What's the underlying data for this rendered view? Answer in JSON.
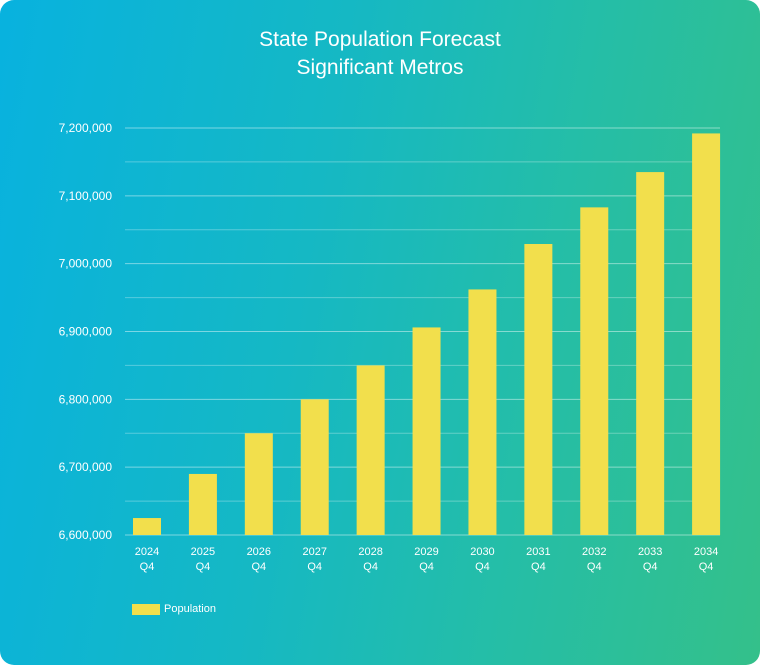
{
  "colors": {
    "bar": "#f2df4c",
    "grid": "rgba(255,255,255,0.45)",
    "text": "#ffffff"
  },
  "chart_data": {
    "type": "bar",
    "title": "State Population Forecast",
    "subtitle": "Significant Metros",
    "categories": [
      [
        "2024",
        "Q4"
      ],
      [
        "2025",
        "Q4"
      ],
      [
        "2026",
        "Q4"
      ],
      [
        "2027",
        "Q4"
      ],
      [
        "2028",
        "Q4"
      ],
      [
        "2029",
        "Q4"
      ],
      [
        "2030",
        "Q4"
      ],
      [
        "2031",
        "Q4"
      ],
      [
        "2032",
        "Q4"
      ],
      [
        "2033",
        "Q4"
      ],
      [
        "2034",
        "Q4"
      ]
    ],
    "series": [
      {
        "name": "Population",
        "values": [
          6625000,
          6690000,
          6750000,
          6800000,
          6850000,
          6906000,
          6962000,
          7029000,
          7083000,
          7135000,
          7192000
        ]
      }
    ],
    "ylim": [
      6600000,
      7200000
    ],
    "yticks": [
      6600000,
      6700000,
      6800000,
      6900000,
      7000000,
      7100000,
      7200000
    ],
    "ytick_labels": [
      "6,600,000",
      "6,700,000",
      "6,800,000",
      "6,900,000",
      "7,000,000",
      "7,100,000",
      "7,200,000"
    ],
    "xlabel": "",
    "ylabel": "",
    "grid": true,
    "legend_position": "bottom-left"
  }
}
